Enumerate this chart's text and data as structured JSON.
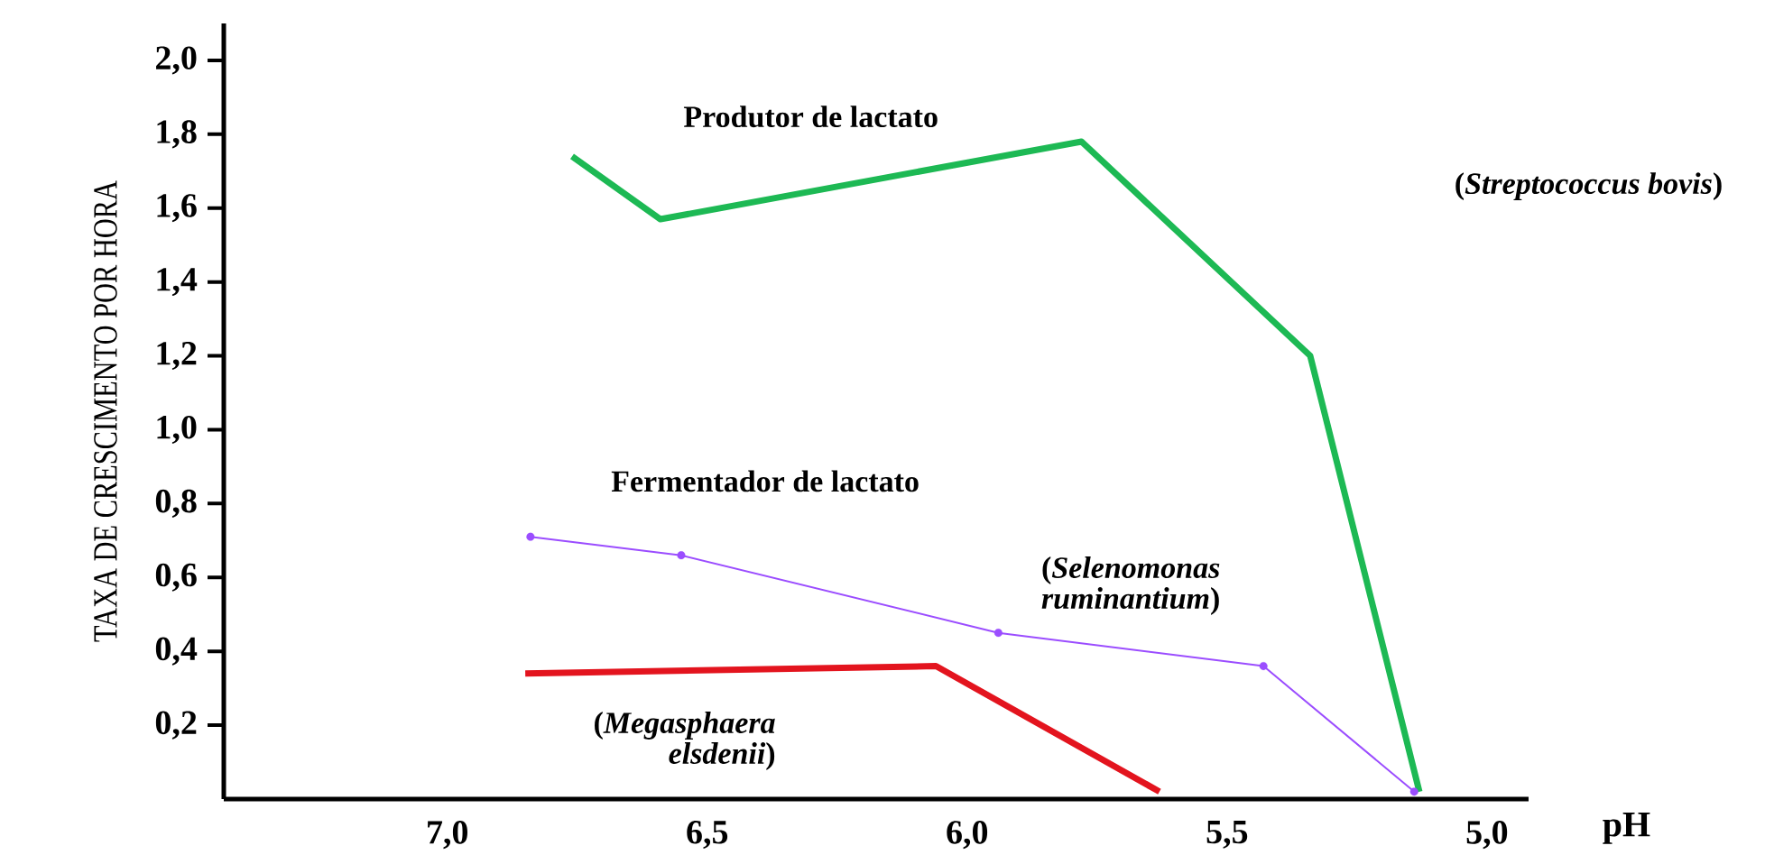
{
  "chart_data": {
    "type": "line",
    "ylabel": "TAXA DE CRESCIMENTO POR HORA",
    "xlabel": "pH",
    "xlim": [
      7.43,
      4.92
    ],
    "ylim": [
      0,
      2.1
    ],
    "xticks": [
      {
        "value": 7.0,
        "label": "7,0"
      },
      {
        "value": 6.5,
        "label": "6,5"
      },
      {
        "value": 6.0,
        "label": "6,0"
      },
      {
        "value": 5.5,
        "label": "5,5"
      },
      {
        "value": 5.0,
        "label": "5,0"
      }
    ],
    "yticks": [
      {
        "value": 0.2,
        "label": "0,2"
      },
      {
        "value": 0.4,
        "label": "0,4"
      },
      {
        "value": 0.6,
        "label": "0,6"
      },
      {
        "value": 0.8,
        "label": "0,8"
      },
      {
        "value": 1.0,
        "label": "1,0"
      },
      {
        "value": 1.2,
        "label": "1,2"
      },
      {
        "value": 1.4,
        "label": "1,4"
      },
      {
        "value": 1.6,
        "label": "1,6"
      },
      {
        "value": 1.8,
        "label": "1,8"
      },
      {
        "value": 2.0,
        "label": "2,0"
      }
    ],
    "series": [
      {
        "color": "#1db954",
        "marker": "none",
        "x": [
          6.76,
          6.59,
          5.78,
          5.34,
          5.13
        ],
        "values": [
          1.74,
          1.57,
          1.78,
          1.2,
          0.02
        ]
      },
      {
        "color": "#9b4dff",
        "marker": "circle",
        "x": [
          6.84,
          6.55,
          5.94,
          5.43,
          5.14
        ],
        "values": [
          0.71,
          0.66,
          0.45,
          0.36,
          0.02
        ]
      },
      {
        "color": "#e3141e",
        "marker": "none",
        "x": [
          6.85,
          6.06,
          5.63
        ],
        "values": [
          0.34,
          0.36,
          0.02
        ]
      }
    ],
    "annotations": [
      "Produtor de lactato",
      "(*Streptococcus bovis*)",
      "Fermentador de lactato",
      "(*Selenomonas ruminantium*)",
      "(*Megasphaera elsdenii*)"
    ],
    "grid": false
  }
}
